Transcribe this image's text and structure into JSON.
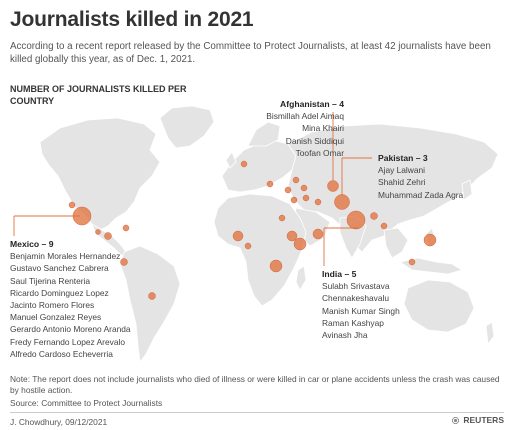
{
  "header": {
    "title": "Journalists killed in 2021",
    "subtitle": "According to a recent report released by the Committee to Protect Journalists, at least 42 journalists have been killed globally this year, as of Dec. 1, 2021."
  },
  "legend": {
    "heading": "NUMBER OF JOURNALISTS KILLED PER COUNTRY"
  },
  "colors": {
    "land": "#e4e4e4",
    "dot": "#e0733f",
    "leader": "#e0733f",
    "text": "#333333"
  },
  "callouts": [
    {
      "id": "afghanistan",
      "title": "Afghanistan – 4",
      "names": [
        "Bismillah Adel Aimaq",
        "Mina Khairi",
        "Danish Siddiqui",
        "Toofan Omar"
      ]
    },
    {
      "id": "pakistan",
      "title": "Pakistan – 3",
      "names": [
        "Ajay Lalwani",
        "Shahid Zehri",
        "Muhammad Zada Agra"
      ]
    },
    {
      "id": "mexico",
      "title": "Mexico – 9",
      "names": [
        "Benjamin Morales Hernandez",
        "Gustavo Sanchez Cabrera",
        "Saul Tijerina Renteria",
        "Ricardo Dominguez Lopez",
        "Jacinto Romero Flores",
        "Manuel Gonzalez Reyes",
        "Gerardo Antonio Moreno Aranda",
        "Fredy Fernando Lopez Arevalo",
        "Alfredo Cardoso Echeverria"
      ]
    },
    {
      "id": "india",
      "title": "India – 5",
      "names": [
        "Sulabh Srivastava",
        "Chennakeshavalu",
        "Manish Kumar Singh",
        "Raman Kashyap",
        "Avinash Jha"
      ]
    }
  ],
  "footer": {
    "note": "Note: The report does not include journalists who died of illness or were killed in car or plane accidents unless the crash was caused by hostile action.",
    "source": "Source: Committee to Protect Journalists",
    "credit": "J. Chowdhury, 09/12/2021",
    "logo_text": "REUTERS"
  }
}
